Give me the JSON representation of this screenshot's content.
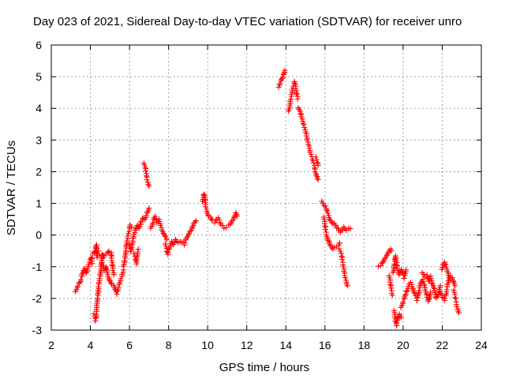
{
  "chart_data": {
    "type": "scatter",
    "title": "Day 023 of 2021, Sidereal Day-to-day VTEC variation (SDTVAR) for receiver unro",
    "xlabel": "GPS time / hours",
    "ylabel": "SDTVAR / TECUs",
    "xlim": [
      2,
      24
    ],
    "ylim": [
      -3,
      6
    ],
    "xticks": [
      "2",
      "4",
      "6",
      "8",
      "10",
      "12",
      "14",
      "16",
      "18",
      "20",
      "22",
      "24"
    ],
    "yticks": [
      "-3",
      "-2",
      "-1",
      "0",
      "1",
      "2",
      "3",
      "4",
      "5",
      "6"
    ],
    "grid": true,
    "marker": "plus",
    "color": "#ff0000",
    "series": [
      {
        "name": "SDTVAR",
        "segments": [
          [
            [
              3.25,
              -1.8
            ],
            [
              3.35,
              -1.6
            ],
            [
              3.5,
              -1.45
            ],
            [
              3.6,
              -1.2
            ],
            [
              3.7,
              -1.05
            ],
            [
              3.8,
              -1.2
            ],
            [
              3.9,
              -1.0
            ],
            [
              4.0,
              -0.8
            ],
            [
              4.05,
              -0.7
            ],
            [
              4.1,
              -0.9
            ]
          ],
          [
            [
              4.15,
              -0.6
            ],
            [
              4.25,
              -0.5
            ],
            [
              4.3,
              -0.3
            ],
            [
              4.35,
              -0.7
            ],
            [
              4.4,
              -0.5
            ]
          ],
          [
            [
              4.2,
              -2.5
            ],
            [
              4.25,
              -2.7
            ],
            [
              4.3,
              -2.55
            ],
            [
              4.35,
              -2.1
            ],
            [
              4.4,
              -1.8
            ],
            [
              4.45,
              -1.5
            ],
            [
              4.5,
              -1.3
            ],
            [
              4.55,
              -1.0
            ],
            [
              4.6,
              -0.6
            ],
            [
              4.65,
              -0.7
            ],
            [
              4.7,
              -0.65
            ]
          ],
          [
            [
              4.6,
              -0.9
            ],
            [
              4.7,
              -1.1
            ],
            [
              4.8,
              -1.0
            ],
            [
              4.9,
              -1.3
            ],
            [
              5.0,
              -1.45
            ],
            [
              5.1,
              -1.55
            ],
            [
              5.2,
              -1.6
            ],
            [
              5.3,
              -1.75
            ],
            [
              5.35,
              -1.85
            ],
            [
              5.4,
              -1.7
            ],
            [
              5.5,
              -1.5
            ],
            [
              5.6,
              -1.3
            ],
            [
              5.7,
              -1.1
            ]
          ],
          [
            [
              4.85,
              -0.6
            ],
            [
              4.95,
              -0.5
            ],
            [
              5.05,
              -0.55
            ],
            [
              5.1,
              -0.8
            ],
            [
              5.15,
              -1.05
            ],
            [
              5.2,
              -1.25
            ]
          ],
          [
            [
              5.7,
              -1.0
            ],
            [
              5.75,
              -0.8
            ],
            [
              5.8,
              -0.55
            ],
            [
              5.85,
              -0.3
            ],
            [
              5.9,
              -0.1
            ],
            [
              5.95,
              0.05
            ],
            [
              6.0,
              0.2
            ],
            [
              6.05,
              0.3
            ],
            [
              6.1,
              0.25
            ]
          ],
          [
            [
              6.0,
              -0.3
            ],
            [
              6.05,
              -0.5
            ],
            [
              6.1,
              -0.45
            ],
            [
              6.15,
              -0.3
            ],
            [
              6.2,
              -0.05
            ],
            [
              6.3,
              0.15
            ],
            [
              6.4,
              0.3
            ]
          ],
          [
            [
              6.25,
              -0.6
            ],
            [
              6.3,
              -0.75
            ],
            [
              6.35,
              -0.9
            ],
            [
              6.4,
              -0.65
            ],
            [
              6.45,
              -0.45
            ]
          ],
          [
            [
              6.5,
              0.2
            ],
            [
              6.6,
              0.45
            ],
            [
              6.7,
              0.55
            ],
            [
              6.8,
              0.5
            ],
            [
              6.9,
              0.7
            ],
            [
              7.0,
              0.85
            ]
          ],
          [
            [
              6.75,
              2.25
            ],
            [
              6.8,
              2.15
            ],
            [
              6.85,
              1.95
            ],
            [
              6.9,
              1.75
            ],
            [
              6.95,
              1.6
            ],
            [
              7.0,
              1.55
            ]
          ],
          [
            [
              7.1,
              0.2
            ],
            [
              7.2,
              0.4
            ],
            [
              7.3,
              0.6
            ],
            [
              7.4,
              0.4
            ],
            [
              7.5,
              0.5
            ],
            [
              7.6,
              0.3
            ],
            [
              7.7,
              0.1
            ],
            [
              7.8,
              0.0
            ],
            [
              7.9,
              -0.15
            ]
          ],
          [
            [
              7.85,
              -0.3
            ],
            [
              7.9,
              -0.5
            ],
            [
              7.95,
              -0.6
            ],
            [
              8.05,
              -0.4
            ],
            [
              8.15,
              -0.2
            ],
            [
              8.25,
              -0.3
            ],
            [
              8.35,
              -0.15
            ],
            [
              8.5,
              -0.25
            ],
            [
              8.65,
              -0.2
            ],
            [
              8.8,
              -0.3
            ],
            [
              8.9,
              -0.1
            ],
            [
              9.0,
              0.0
            ],
            [
              9.1,
              0.1
            ],
            [
              9.2,
              0.2
            ],
            [
              9.3,
              0.35
            ],
            [
              9.4,
              0.45
            ]
          ],
          [
            [
              9.75,
              1.05
            ],
            [
              9.8,
              1.3
            ],
            [
              9.85,
              1.2
            ],
            [
              9.9,
              0.9
            ],
            [
              9.95,
              0.75
            ],
            [
              10.05,
              0.6
            ],
            [
              10.15,
              0.55
            ],
            [
              10.25,
              0.45
            ],
            [
              10.35,
              0.4
            ],
            [
              10.45,
              0.5
            ],
            [
              10.55,
              0.55
            ],
            [
              10.65,
              0.35
            ],
            [
              10.75,
              0.3
            ]
          ],
          [
            [
              10.85,
              0.2
            ],
            [
              10.95,
              0.25
            ],
            [
              11.15,
              0.35
            ],
            [
              11.25,
              0.45
            ],
            [
              11.35,
              0.55
            ],
            [
              11.45,
              0.7
            ],
            [
              11.5,
              0.6
            ]
          ],
          [
            [
              13.65,
              4.65
            ],
            [
              13.7,
              4.8
            ],
            [
              13.8,
              4.95
            ],
            [
              13.9,
              5.1
            ],
            [
              13.95,
              5.2
            ]
          ],
          [
            [
              14.15,
              3.9
            ],
            [
              14.25,
              4.3
            ],
            [
              14.35,
              4.65
            ],
            [
              14.45,
              4.85
            ],
            [
              14.5,
              4.7
            ],
            [
              14.6,
              4.3
            ]
          ],
          [
            [
              14.65,
              4.0
            ],
            [
              14.75,
              3.85
            ],
            [
              14.85,
              3.6
            ],
            [
              14.95,
              3.4
            ],
            [
              15.05,
              3.2
            ],
            [
              15.1,
              3.0
            ],
            [
              15.2,
              2.8
            ],
            [
              15.25,
              2.6
            ],
            [
              15.35,
              2.4
            ],
            [
              15.45,
              2.2
            ],
            [
              15.5,
              2.0
            ],
            [
              15.6,
              1.85
            ],
            [
              15.65,
              1.75
            ]
          ],
          [
            [
              15.55,
              2.45
            ],
            [
              15.6,
              2.3
            ],
            [
              15.65,
              2.2
            ]
          ],
          [
            [
              15.85,
              1.05
            ],
            [
              15.95,
              0.95
            ],
            [
              16.05,
              0.85
            ],
            [
              16.15,
              0.7
            ],
            [
              16.2,
              0.55
            ],
            [
              16.3,
              0.45
            ],
            [
              16.4,
              0.35
            ],
            [
              16.5,
              0.35
            ],
            [
              16.6,
              0.25
            ],
            [
              16.7,
              0.15
            ],
            [
              16.8,
              0.1
            ],
            [
              16.95,
              0.25
            ],
            [
              17.1,
              0.15
            ],
            [
              17.2,
              0.2
            ],
            [
              17.3,
              0.2
            ]
          ],
          [
            [
              15.95,
              0.55
            ],
            [
              16.0,
              0.3
            ],
            [
              16.05,
              0.1
            ],
            [
              16.1,
              -0.05
            ],
            [
              16.2,
              -0.2
            ],
            [
              16.3,
              -0.35
            ],
            [
              16.4,
              -0.45
            ],
            [
              16.5,
              -0.4
            ],
            [
              16.6,
              -0.35
            ],
            [
              16.7,
              -0.3
            ],
            [
              16.75,
              -0.25
            ]
          ],
          [
            [
              16.75,
              -0.45
            ],
            [
              16.85,
              -0.65
            ],
            [
              16.9,
              -0.85
            ],
            [
              16.95,
              -1.0
            ],
            [
              17.0,
              -1.2
            ],
            [
              17.05,
              -1.35
            ],
            [
              17.1,
              -1.5
            ],
            [
              17.15,
              -1.6
            ]
          ],
          [
            [
              18.75,
              -1.0
            ],
            [
              18.85,
              -0.95
            ],
            [
              18.95,
              -0.85
            ],
            [
              19.05,
              -0.75
            ],
            [
              19.15,
              -0.65
            ],
            [
              19.25,
              -0.55
            ],
            [
              19.35,
              -0.45
            ],
            [
              19.4,
              -0.5
            ]
          ],
          [
            [
              19.3,
              -1.3
            ],
            [
              19.35,
              -1.55
            ],
            [
              19.4,
              -1.75
            ],
            [
              19.45,
              -1.9
            ]
          ],
          [
            [
              19.55,
              -2.4
            ],
            [
              19.6,
              -2.7
            ],
            [
              19.65,
              -2.85
            ],
            [
              19.7,
              -2.65
            ],
            [
              19.8,
              -2.5
            ],
            [
              19.9,
              -2.6
            ]
          ],
          [
            [
              19.5,
              -1.2
            ],
            [
              19.55,
              -0.9
            ],
            [
              19.6,
              -0.65
            ],
            [
              19.65,
              -0.8
            ],
            [
              19.7,
              -1.05
            ],
            [
              19.8,
              -1.25
            ],
            [
              19.9,
              -1.1
            ],
            [
              20.0,
              -1.2
            ],
            [
              20.05,
              -1.35
            ],
            [
              20.15,
              -1.1
            ]
          ],
          [
            [
              19.9,
              -2.3
            ],
            [
              20.0,
              -2.1
            ],
            [
              20.1,
              -1.9
            ],
            [
              20.2,
              -1.75
            ],
            [
              20.3,
              -1.55
            ],
            [
              20.4,
              -1.5
            ],
            [
              20.5,
              -1.7
            ],
            [
              20.6,
              -1.85
            ],
            [
              20.7,
              -2.05
            ],
            [
              20.8,
              -1.8
            ],
            [
              20.9,
              -1.5
            ],
            [
              21.0,
              -1.4
            ],
            [
              21.1,
              -1.6
            ],
            [
              21.2,
              -1.9
            ],
            [
              21.3,
              -2.1
            ],
            [
              21.4,
              -1.8
            ]
          ],
          [
            [
              21.0,
              -1.2
            ],
            [
              21.1,
              -1.3
            ],
            [
              21.2,
              -1.25
            ],
            [
              21.3,
              -1.45
            ],
            [
              21.4,
              -1.3
            ],
            [
              21.5,
              -1.55
            ],
            [
              21.6,
              -1.7
            ],
            [
              21.7,
              -2.0
            ],
            [
              21.8,
              -1.85
            ],
            [
              21.9,
              -1.6
            ]
          ],
          [
            [
              22.0,
              -1.1
            ],
            [
              22.05,
              -0.9
            ],
            [
              22.1,
              -0.85
            ],
            [
              22.2,
              -1.0
            ],
            [
              22.3,
              -1.2
            ],
            [
              22.4,
              -1.4
            ],
            [
              22.5,
              -1.35
            ],
            [
              22.6,
              -1.5
            ],
            [
              22.65,
              -1.6
            ]
          ],
          [
            [
              21.9,
              -1.8
            ],
            [
              22.0,
              -1.95
            ],
            [
              22.1,
              -2.05
            ],
            [
              22.2,
              -1.85
            ],
            [
              22.3,
              -1.5
            ],
            [
              22.4,
              -1.3
            ]
          ],
          [
            [
              22.6,
              -1.75
            ],
            [
              22.65,
              -1.95
            ],
            [
              22.7,
              -2.1
            ],
            [
              22.75,
              -2.25
            ],
            [
              22.8,
              -2.4
            ],
            [
              22.85,
              -2.45
            ]
          ]
        ]
      }
    ]
  }
}
